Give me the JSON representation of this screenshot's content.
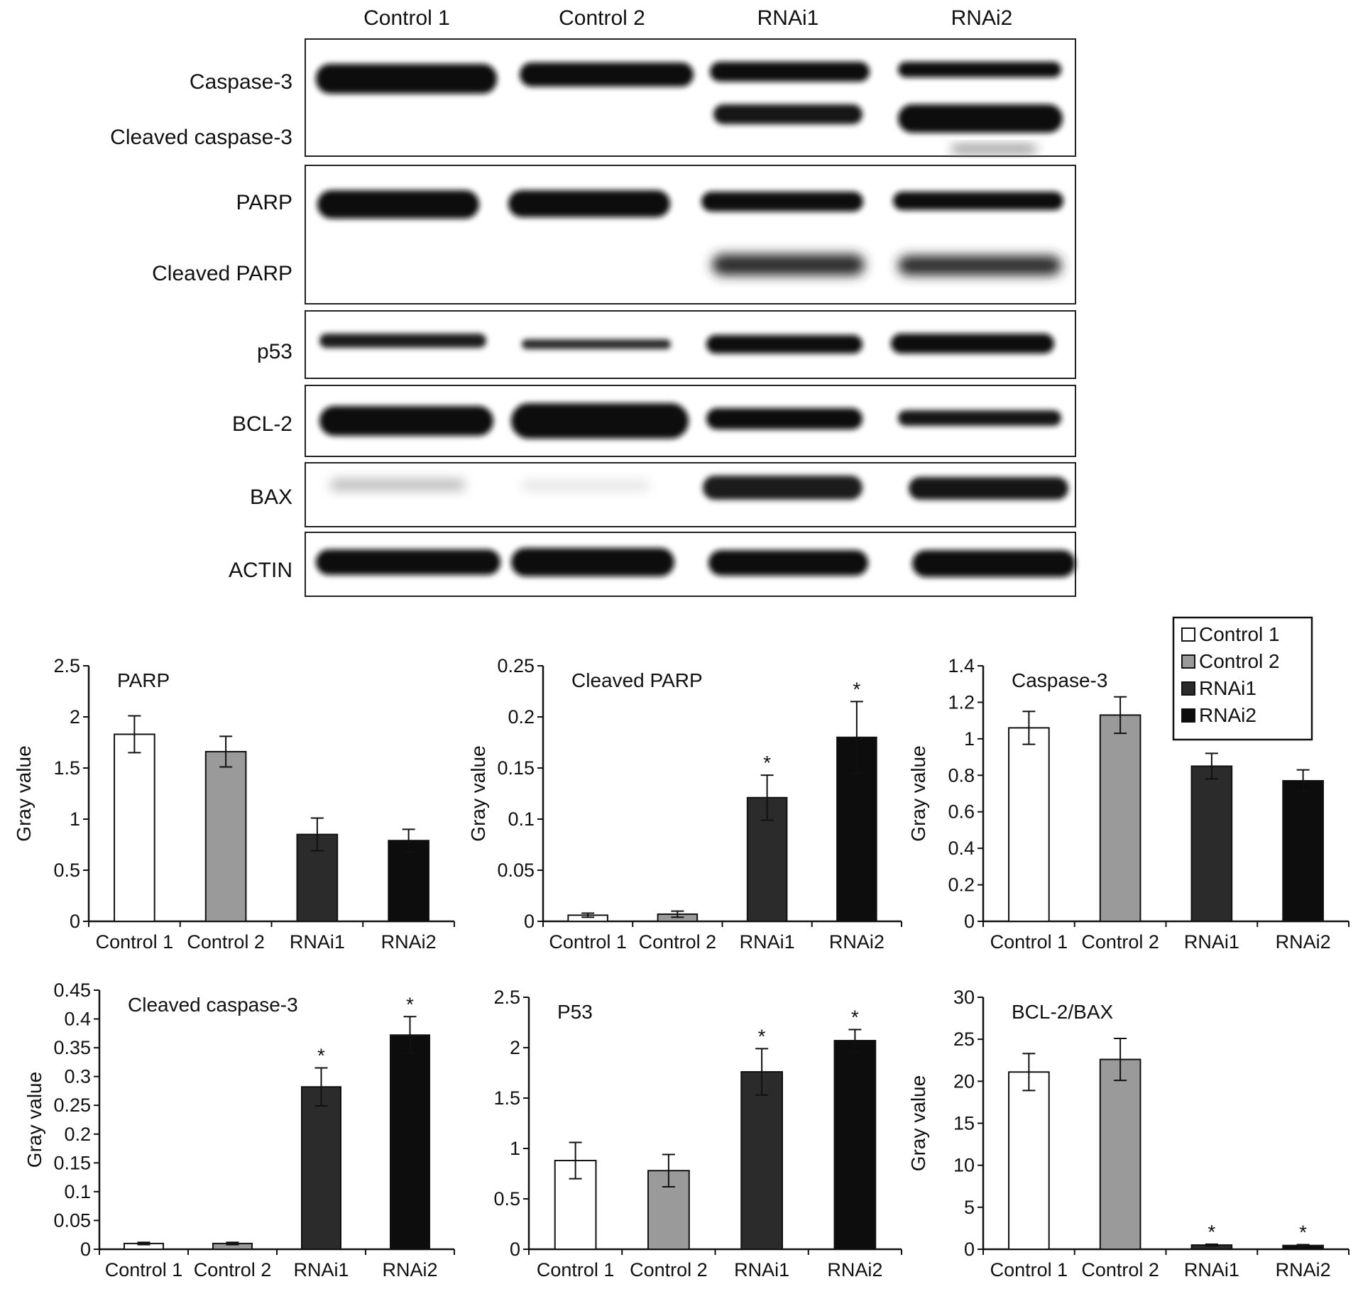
{
  "blot": {
    "lanes": [
      "Control 1",
      "Control 2",
      "RNAi1",
      "RNAi2"
    ],
    "rows": [
      {
        "labels": [
          "Caspase-3",
          "Cleaved caspase-3"
        ]
      },
      {
        "labels": [
          "PARP",
          "Cleaved PARP"
        ]
      },
      {
        "labels": [
          "p53"
        ]
      },
      {
        "labels": [
          "BCL-2"
        ]
      },
      {
        "labels": [
          "BAX"
        ]
      },
      {
        "labels": [
          "ACTIN"
        ]
      }
    ]
  },
  "colors": {
    "Control 1": "#ffffff",
    "Control 2": "#9a9a9a",
    "RNAi1": "#2b2b2b",
    "RNAi2": "#0d0d0d"
  },
  "chart_data": [
    {
      "type": "bar",
      "title": "PARP",
      "ylabel": "Gray value",
      "categories": [
        "Control 1",
        "Control 2",
        "RNAi1",
        "RNAi2"
      ],
      "values": [
        1.83,
        1.66,
        0.85,
        0.79
      ],
      "errors": [
        0.18,
        0.15,
        0.16,
        0.11
      ],
      "significant": [
        false,
        false,
        false,
        false
      ],
      "ylim": [
        0,
        2.5
      ],
      "yticks": [
        0,
        0.5,
        1,
        1.5,
        2,
        2.5
      ],
      "yticklabels": [
        "0",
        "0.5",
        "1",
        "1.5",
        "2",
        "2.5"
      ],
      "legend": null
    },
    {
      "type": "bar",
      "title": "Cleaved PARP",
      "ylabel": "Gray value",
      "categories": [
        "Control 1",
        "Control 2",
        "RNAi1",
        "RNAi2"
      ],
      "values": [
        0.006,
        0.007,
        0.121,
        0.18
      ],
      "errors": [
        0.002,
        0.003,
        0.022,
        0.035
      ],
      "significant": [
        false,
        false,
        true,
        true
      ],
      "ylim": [
        0,
        0.25
      ],
      "yticks": [
        0,
        0.05,
        0.1,
        0.15,
        0.2,
        0.25
      ],
      "yticklabels": [
        "0",
        "0.05",
        "0.1",
        "0.15",
        "0.2",
        "0.25"
      ],
      "legend": null
    },
    {
      "type": "bar",
      "title": "Caspase-3",
      "ylabel": "Gray value",
      "categories": [
        "Control 1",
        "Control 2",
        "RNAi1",
        "RNAi2"
      ],
      "values": [
        1.06,
        1.13,
        0.85,
        0.77
      ],
      "errors": [
        0.09,
        0.1,
        0.07,
        0.06
      ],
      "significant": [
        false,
        false,
        false,
        false
      ],
      "ylim": [
        0,
        1.4
      ],
      "yticks": [
        0,
        0.2,
        0.4,
        0.6,
        0.8,
        1,
        1.2,
        1.4
      ],
      "yticklabels": [
        "0",
        "0.2",
        "0.4",
        "0.6",
        "0.8",
        "1",
        "1.2",
        "1.4"
      ],
      "legend": {
        "placement": "top-right",
        "entries": [
          "Control 1",
          "Control 2",
          "RNAi1",
          "RNAi2"
        ]
      }
    },
    {
      "type": "bar",
      "title": "Cleaved caspase-3",
      "ylabel": "Gray value",
      "categories": [
        "Control 1",
        "Control 2",
        "RNAi1",
        "RNAi2"
      ],
      "values": [
        0.01,
        0.01,
        0.282,
        0.372
      ],
      "errors": [
        0.002,
        0.002,
        0.033,
        0.032
      ],
      "significant": [
        false,
        false,
        true,
        true
      ],
      "ylim": [
        0,
        0.45
      ],
      "yticks": [
        0,
        0.05,
        0.1,
        0.15,
        0.2,
        0.25,
        0.3,
        0.35,
        0.4,
        0.45
      ],
      "yticklabels": [
        "0",
        "0.05",
        "0.1",
        "0.15",
        "0.2",
        "0.25",
        "0.3",
        "0.35",
        "0.4",
        "0.45"
      ],
      "legend": null
    },
    {
      "type": "bar",
      "title": "P53",
      "ylabel": "",
      "categories": [
        "Control 1",
        "Control 2",
        "RNAi1",
        "RNAi2"
      ],
      "values": [
        0.88,
        0.78,
        1.76,
        2.07
      ],
      "errors": [
        0.18,
        0.16,
        0.23,
        0.11
      ],
      "significant": [
        false,
        false,
        true,
        true
      ],
      "ylim": [
        0,
        2.5
      ],
      "yticks": [
        0,
        0.5,
        1,
        1.5,
        2,
        2.5
      ],
      "yticklabels": [
        "0",
        "0.5",
        "1",
        "1.5",
        "2",
        "2.5"
      ],
      "legend": null
    },
    {
      "type": "bar",
      "title": "BCL-2/BAX",
      "ylabel": "Gray value",
      "categories": [
        "Control 1",
        "Control 2",
        "RNAi1",
        "RNAi2"
      ],
      "values": [
        21.1,
        22.6,
        0.5,
        0.45
      ],
      "errors": [
        2.2,
        2.5,
        0.1,
        0.1
      ],
      "significant": [
        false,
        false,
        true,
        true
      ],
      "ylim": [
        0,
        30
      ],
      "yticks": [
        0,
        5,
        10,
        15,
        20,
        25,
        30
      ],
      "yticklabels": [
        "0",
        "5",
        "10",
        "15",
        "20",
        "25",
        "30"
      ],
      "legend": null
    }
  ]
}
